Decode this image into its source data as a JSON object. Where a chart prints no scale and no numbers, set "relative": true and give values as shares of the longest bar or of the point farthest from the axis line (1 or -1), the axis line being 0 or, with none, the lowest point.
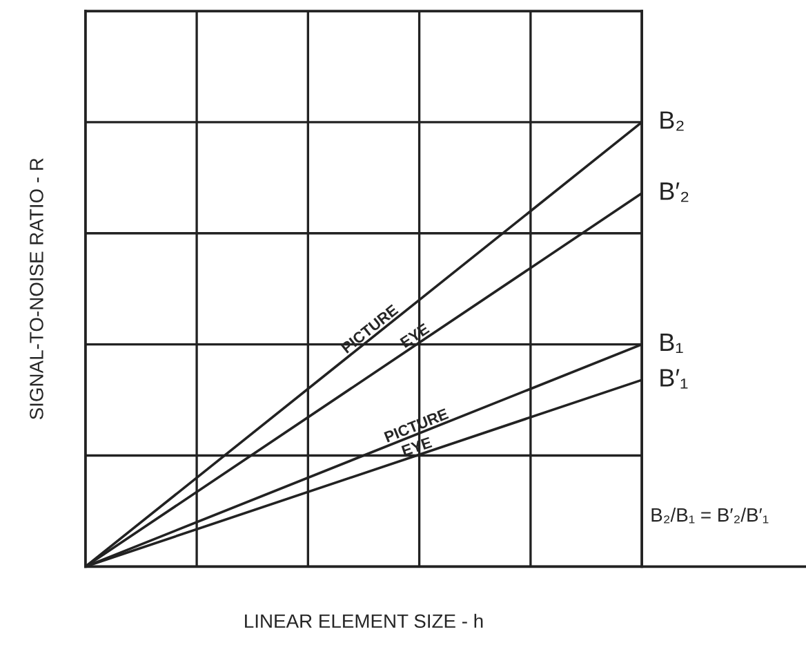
{
  "chart_data": {
    "type": "line",
    "relative": true,
    "xlabel": "LINEAR ELEMENT SIZE - h",
    "ylabel": "SIGNAL-TO-NOISE RATIO - R",
    "categories": [
      null,
      null
    ],
    "series": [
      {
        "name": "B₂",
        "color": "#222222",
        "values": [
          0,
          1
        ]
      },
      {
        "name": "B′₂",
        "color": "#222222",
        "values": [
          0,
          0.84
        ]
      },
      {
        "name": "B₁",
        "color": "#222222",
        "values": [
          0,
          0.5
        ]
      },
      {
        "name": "B′₁",
        "color": "#222222",
        "values": [
          0,
          0.42
        ]
      }
    ],
    "annotations": [
      "PICTURE",
      "EYE",
      "PICTURE",
      "EYE",
      "B₂/B₁ = B′₂/B′₁"
    ],
    "grid": true,
    "legend": false,
    "tick_labels": false,
    "marker": "none",
    "line_style": "solid"
  }
}
